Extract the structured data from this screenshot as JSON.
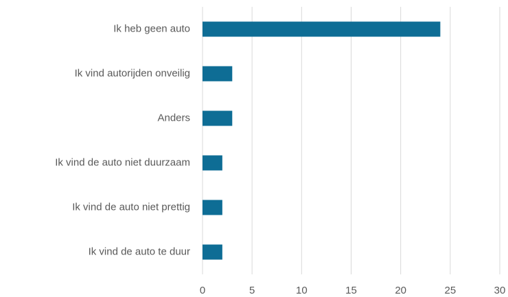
{
  "chart_data": {
    "type": "hbar",
    "categories": [
      "Ik heb geen auto",
      "Ik vind autorijden onveilig",
      "Anders",
      "Ik vind de auto niet duurzaam",
      "Ik vind de auto niet prettig",
      "Ik vind de auto te duur"
    ],
    "values": [
      24,
      3,
      3,
      2,
      2,
      2
    ],
    "color": "#0e6d95",
    "xlim": [
      0,
      30
    ],
    "xticks": [
      0,
      5,
      10,
      15,
      20,
      25,
      30
    ],
    "grid": true
  }
}
